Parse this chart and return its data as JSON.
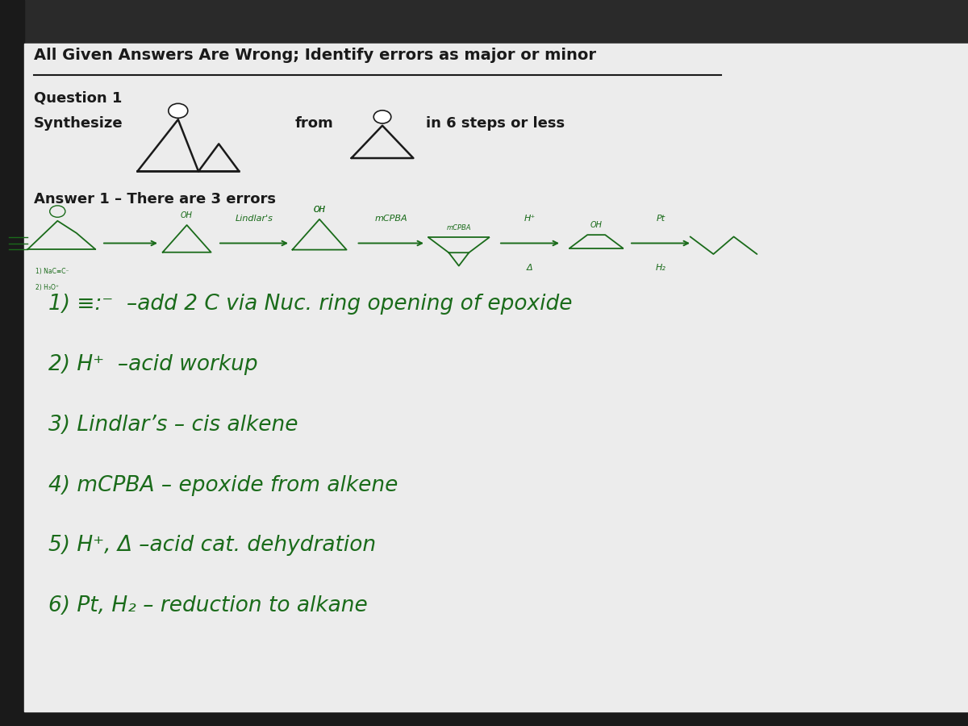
{
  "bg_color": "#e8e8e8",
  "bg_color_lower": "#f0f0f0",
  "title": "All Given Answers Are Wrong; Identify errors as major or minor",
  "question": "Question 1",
  "synthesize_label": "Synthesize",
  "from_label": "from",
  "steps_label": "in 6 steps or less",
  "answer_label": "Answer 1 – There are 3 errors",
  "handwritten_lines": [
    "1) ≡:⁻  –add 2 C via Nuc. ring opening of epoxide",
    "2) H⁺  –acid workup",
    "3) Lindlar’s – cis alkene",
    "4) mCPBA – epoxide from alkene",
    "5) H⁺, Δ –acid cat. dehydration",
    "6) Pt, H₂ – reduction to alkane"
  ],
  "handwritten_color": "#1a6b1a",
  "printed_color": "#1a1a1a",
  "title_fontsize": 14,
  "body_fontsize": 13,
  "handwritten_fontsize": 19,
  "scheme_fontsize": 8
}
